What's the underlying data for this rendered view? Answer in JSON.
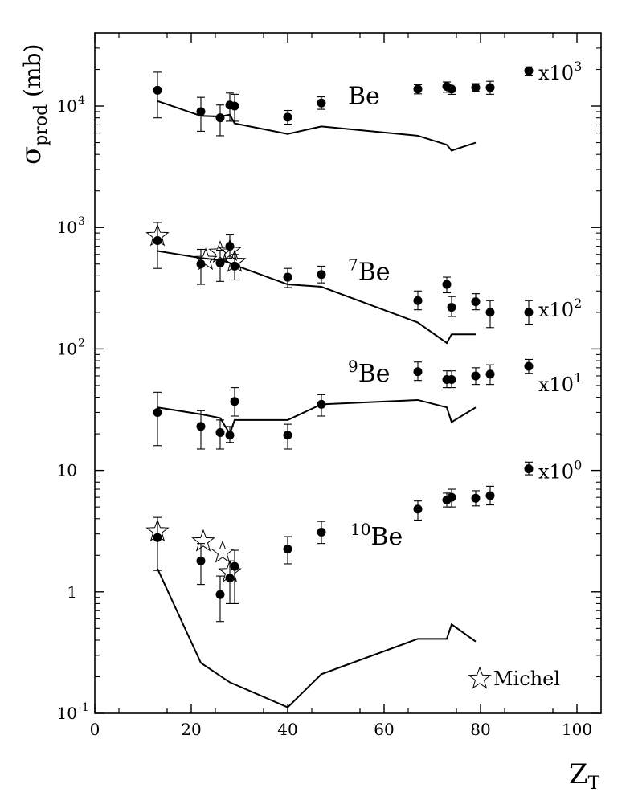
{
  "chart_data": {
    "type": "scatter",
    "xlabel": "Z",
    "xlabel_sub": "T",
    "ylabel": "σ",
    "ylabel_sub": "prod",
    "ylabel_unit": "(mb)",
    "xlim": [
      0,
      105
    ],
    "ylim": [
      0.1,
      40000
    ],
    "yscale": "log",
    "grid": false,
    "x_ticks": [
      0,
      20,
      40,
      60,
      80,
      100
    ],
    "x_tick_labels": [
      "0",
      "20",
      "40",
      "60",
      "80",
      "100"
    ],
    "y_ticks": [
      {
        "value": 10000,
        "base": "10",
        "exp": "4"
      },
      {
        "value": 1000,
        "base": "10",
        "exp": "3"
      },
      {
        "value": 100,
        "base": "10",
        "exp": "2"
      },
      {
        "value": 10,
        "base": "10",
        "exp": ""
      },
      {
        "value": 1,
        "base": "1",
        "exp": ""
      },
      {
        "value": 0.1,
        "base": "10",
        "exp": "-1"
      }
    ],
    "legend": {
      "label": "Michel",
      "position": "bottom-right"
    },
    "series": [
      {
        "label": "Be",
        "label_sup": "",
        "label_pos": [
          52.5,
          10400
        ],
        "scale_base": "x10",
        "scale_exp": "3",
        "scale_pos": [
          92,
          16500
        ],
        "points": [
          {
            "x": 13,
            "y": 13500,
            "err": [
              8000,
              19000
            ]
          },
          {
            "x": 22,
            "y": 9000,
            "err": [
              6200,
              11800
            ]
          },
          {
            "x": 26,
            "y": 8000,
            "err": [
              5700,
              10200
            ]
          },
          {
            "x": 28,
            "y": 10200,
            "err": [
              7500,
              12800
            ]
          },
          {
            "x": 29,
            "y": 10000,
            "err": [
              7500,
              12500
            ]
          },
          {
            "x": 40,
            "y": 8100,
            "err": [
              7100,
              9200
            ]
          },
          {
            "x": 47,
            "y": 10600,
            "err": [
              9400,
              11900
            ]
          },
          {
            "x": 67,
            "y": 13800,
            "err": [
              12600,
              15000
            ]
          },
          {
            "x": 73,
            "y": 14500,
            "err": [
              13000,
              15800
            ]
          },
          {
            "x": 74,
            "y": 13800,
            "err": [
              12500,
              15200
            ]
          },
          {
            "x": 79,
            "y": 14200,
            "err": [
              13200,
              15300
            ]
          },
          {
            "x": 82,
            "y": 14200,
            "err": [
              12500,
              16000
            ]
          },
          {
            "x": 90,
            "y": 19500,
            "err": [
              18000,
              21000
            ]
          }
        ],
        "michel": [],
        "calc": [
          [
            13,
            11000
          ],
          [
            22,
            8300
          ],
          [
            26,
            8200
          ],
          [
            28,
            8500
          ],
          [
            29,
            7200
          ],
          [
            40,
            5900
          ],
          [
            47,
            6800
          ],
          [
            67,
            5700
          ],
          [
            73,
            4800
          ],
          [
            74,
            4300
          ],
          [
            79,
            5000
          ]
        ]
      },
      {
        "label": "Be",
        "label_sup": "7",
        "label_pos": [
          52.5,
          370
        ],
        "scale_base": "x10",
        "scale_exp": "2",
        "scale_pos": [
          92,
          185
        ],
        "points": [
          {
            "x": 13,
            "y": 780,
            "err": [
              460,
              1100
            ]
          },
          {
            "x": 22,
            "y": 500,
            "err": [
              340,
              660
            ]
          },
          {
            "x": 26,
            "y": 510,
            "err": [
              360,
              650
            ]
          },
          {
            "x": 28,
            "y": 700,
            "err": [
              550,
              880
            ]
          },
          {
            "x": 29,
            "y": 480,
            "err": [
              370,
              600
            ]
          },
          {
            "x": 40,
            "y": 390,
            "err": [
              320,
              460
            ]
          },
          {
            "x": 47,
            "y": 410,
            "err": [
              350,
              480
            ]
          },
          {
            "x": 67,
            "y": 250,
            "err": [
              210,
              300
            ]
          },
          {
            "x": 73,
            "y": 340,
            "err": [
              290,
              390
            ]
          },
          {
            "x": 74,
            "y": 220,
            "err": [
              185,
              270
            ]
          },
          {
            "x": 79,
            "y": 245,
            "err": [
              210,
              285
            ]
          },
          {
            "x": 82,
            "y": 200,
            "err": [
              150,
              250
            ]
          },
          {
            "x": 90,
            "y": 200,
            "err": [
              160,
              250
            ]
          }
        ],
        "michel": [
          {
            "x": 13,
            "y": 850
          },
          {
            "x": 23,
            "y": 540
          },
          {
            "x": 26,
            "y": 620
          },
          {
            "x": 28,
            "y": 640
          },
          {
            "x": 29,
            "y": 520
          }
        ],
        "calc": [
          [
            13,
            640
          ],
          [
            22,
            560
          ],
          [
            26,
            540
          ],
          [
            28,
            510
          ],
          [
            29,
            490
          ],
          [
            40,
            340
          ],
          [
            47,
            325
          ],
          [
            67,
            165
          ],
          [
            73,
            112
          ],
          [
            74,
            132
          ],
          [
            79,
            132
          ]
        ]
      },
      {
        "label": "Be",
        "label_sup": "9",
        "label_pos": [
          52.5,
          54
        ],
        "scale_base": "x10",
        "scale_exp": "1",
        "scale_pos": [
          92,
          45
        ],
        "points": [
          {
            "x": 13,
            "y": 30,
            "err": [
              16,
              44
            ]
          },
          {
            "x": 22,
            "y": 23,
            "err": [
              15,
              31
            ]
          },
          {
            "x": 26,
            "y": 20.5,
            "err": [
              15,
              26
            ]
          },
          {
            "x": 28,
            "y": 19.5,
            "err": [
              17,
              23
            ]
          },
          {
            "x": 29,
            "y": 37,
            "err": [
              28,
              48
            ]
          },
          {
            "x": 40,
            "y": 19.5,
            "err": [
              15,
              24
            ]
          },
          {
            "x": 47,
            "y": 35,
            "err": [
              28,
              42
            ]
          },
          {
            "x": 67,
            "y": 65,
            "err": [
              55,
              78
            ]
          },
          {
            "x": 73,
            "y": 56,
            "err": [
              48,
              66
            ]
          },
          {
            "x": 74,
            "y": 56,
            "err": [
              48,
              66
            ]
          },
          {
            "x": 79,
            "y": 60,
            "err": [
              51,
              70
            ]
          },
          {
            "x": 82,
            "y": 62,
            "err": [
              51,
              74
            ]
          },
          {
            "x": 90,
            "y": 72,
            "err": [
              63,
              82
            ]
          }
        ],
        "michel": [],
        "calc": [
          [
            13,
            33
          ],
          [
            22,
            29
          ],
          [
            26,
            27
          ],
          [
            28,
            20
          ],
          [
            29,
            26
          ],
          [
            40,
            26
          ],
          [
            47,
            35
          ],
          [
            67,
            38
          ],
          [
            73,
            33
          ],
          [
            74,
            25
          ],
          [
            79,
            33
          ]
        ]
      },
      {
        "label": "Be",
        "label_sup": "10",
        "label_pos": [
          53,
          2.45
        ],
        "scale_base": "x10",
        "scale_exp": "0",
        "scale_pos": [
          92,
          8.6
        ],
        "points": [
          {
            "x": 13,
            "y": 2.8,
            "err": [
              1.5,
              4.1
            ]
          },
          {
            "x": 22,
            "y": 1.8,
            "err": [
              1.15,
              2.5
            ]
          },
          {
            "x": 26,
            "y": 0.95,
            "err": [
              0.57,
              1.35
            ]
          },
          {
            "x": 28,
            "y": 1.3,
            "err": [
              0.8,
              1.8
            ]
          },
          {
            "x": 29,
            "y": 1.62,
            "err": [
              0.8,
              2.2
            ]
          },
          {
            "x": 40,
            "y": 2.25,
            "err": [
              1.7,
              2.85
            ]
          },
          {
            "x": 47,
            "y": 3.1,
            "err": [
              2.5,
              3.8
            ]
          },
          {
            "x": 67,
            "y": 4.8,
            "err": [
              3.9,
              5.6
            ]
          },
          {
            "x": 73,
            "y": 5.7,
            "err": [
              5.0,
              6.5
            ]
          },
          {
            "x": 74,
            "y": 6.0,
            "err": [
              5.0,
              7.0
            ]
          },
          {
            "x": 79,
            "y": 5.9,
            "err": [
              5.1,
              6.8
            ]
          },
          {
            "x": 82,
            "y": 6.2,
            "err": [
              5.2,
              7.4
            ]
          },
          {
            "x": 90,
            "y": 10.3,
            "err": [
              9.2,
              11.7
            ]
          }
        ],
        "michel": [
          {
            "x": 13,
            "y": 3.15
          },
          {
            "x": 22.5,
            "y": 2.6
          },
          {
            "x": 26.5,
            "y": 2.1
          },
          {
            "x": 28,
            "y": 1.45
          }
        ],
        "calc": [
          [
            13,
            1.55
          ],
          [
            22,
            0.26
          ],
          [
            28,
            0.18
          ],
          [
            40,
            0.112
          ],
          [
            47,
            0.21
          ],
          [
            67,
            0.41
          ],
          [
            73,
            0.41
          ],
          [
            74,
            0.54
          ],
          [
            79,
            0.39
          ]
        ]
      }
    ]
  }
}
